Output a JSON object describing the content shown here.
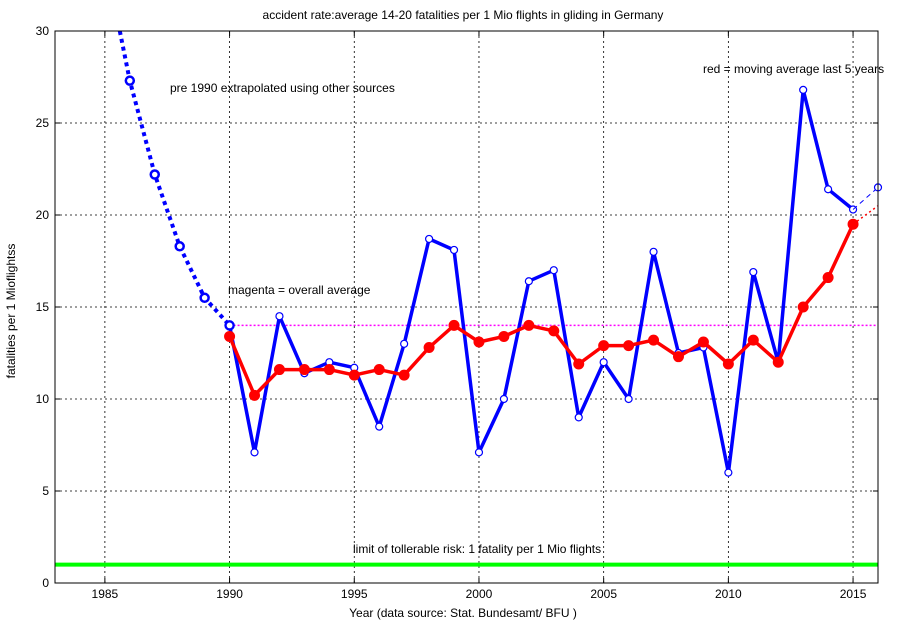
{
  "chart_data": {
    "type": "line",
    "title": "accident rate:average 14-20 fatalities per 1 Mio flights  in gliding in Germany",
    "xlabel": "Year  (data source: Stat. Bundesamt/ BFU )",
    "ylabel": "fatalities per 1 Mioflightss",
    "xlim": [
      1983,
      2016
    ],
    "ylim": [
      0,
      30
    ],
    "xticks": [
      1985,
      1990,
      1995,
      2000,
      2005,
      2010,
      2015
    ],
    "yticks": [
      0,
      5,
      10,
      15,
      20,
      25,
      30
    ],
    "grid": true,
    "annotations": {
      "pre1990": "pre 1990  extrapolated using other sources",
      "red_note": "red = moving average last 5 years",
      "magenta_note": "magenta = overall average",
      "limit_note": "limit of tollerable risk: 1 fatality per 1 Mio flights"
    },
    "series": [
      {
        "role": "extrapolated",
        "color": "#0000ff",
        "style": "dotted",
        "x": [
          1985.6,
          1986,
          1987,
          1988,
          1989,
          1990
        ],
        "y": [
          30,
          27.3,
          22.2,
          18.3,
          15.5,
          14.0
        ]
      },
      {
        "role": "annual",
        "color": "#0000ff",
        "style": "solid",
        "x": [
          1990,
          1991,
          1992,
          1993,
          1994,
          1995,
          1996,
          1997,
          1998,
          1999,
          2000,
          2001,
          2002,
          2003,
          2004,
          2005,
          2006,
          2007,
          2008,
          2009,
          2010,
          2011,
          2012,
          2013,
          2014,
          2015
        ],
        "y": [
          14.0,
          7.1,
          14.5,
          11.4,
          12.0,
          11.7,
          8.5,
          13.0,
          18.7,
          18.1,
          7.1,
          10.0,
          16.4,
          17.0,
          9.0,
          12.0,
          10.0,
          18.0,
          12.5,
          12.8,
          6.0,
          16.9,
          12.0,
          26.8,
          21.4,
          20.3
        ]
      },
      {
        "role": "annual-forecast",
        "color": "#0000ff",
        "style": "dashed",
        "x": [
          2015,
          2016
        ],
        "y": [
          20.3,
          21.5
        ]
      },
      {
        "role": "moving-average",
        "color": "#ff0000",
        "style": "solid",
        "x": [
          1990,
          1991,
          1992,
          1993,
          1994,
          1995,
          1996,
          1997,
          1998,
          1999,
          2000,
          2001,
          2002,
          2003,
          2004,
          2005,
          2006,
          2007,
          2008,
          2009,
          2010,
          2011,
          2012,
          2013,
          2014,
          2015
        ],
        "y": [
          13.4,
          10.2,
          11.6,
          11.6,
          11.6,
          11.3,
          11.6,
          11.3,
          12.8,
          14.0,
          13.1,
          13.4,
          14.0,
          13.7,
          11.9,
          12.9,
          12.9,
          13.2,
          12.3,
          13.1,
          11.9,
          13.2,
          12.0,
          15.0,
          16.6,
          19.5
        ]
      },
      {
        "role": "moving-average-forecast",
        "color": "#ff0000",
        "style": "dotted",
        "x": [
          2015,
          2016
        ],
        "y": [
          19.5,
          20.5
        ]
      }
    ],
    "overall_average": {
      "value": 14.0,
      "x_from": 1990,
      "x_to": 2016,
      "color": "#ff00ff"
    },
    "tolerable_limit": {
      "value": 1.0,
      "color": "#00ff00"
    }
  }
}
